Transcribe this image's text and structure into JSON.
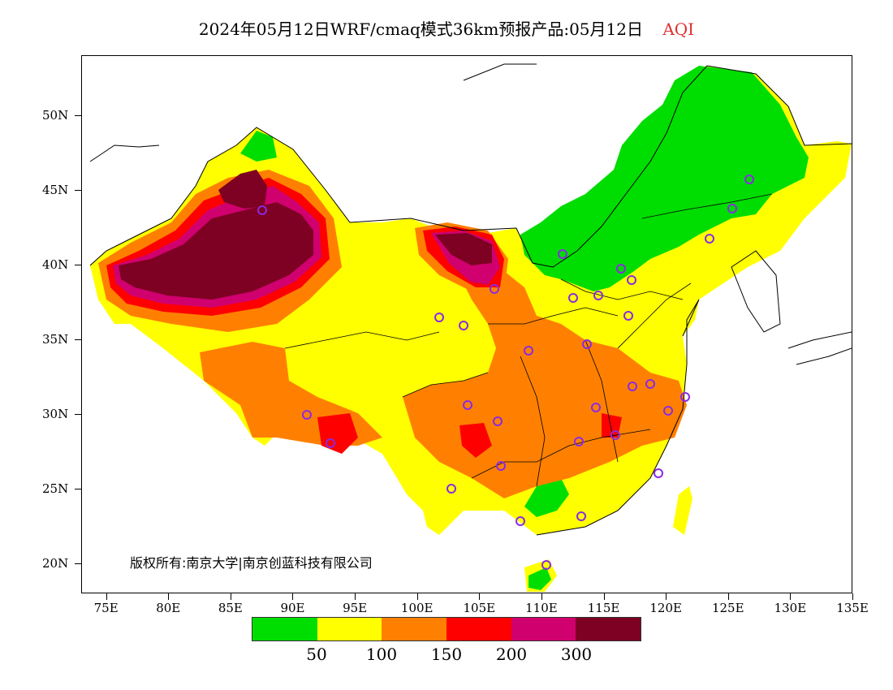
{
  "header": {
    "title": "2024年05月12日WRF/cmaq模式36km预报产品:05月12日",
    "parameter": "AQI"
  },
  "map": {
    "lat_labels": [
      "50N",
      "45N",
      "40N",
      "35N",
      "30N",
      "25N",
      "20N"
    ],
    "lat_values": [
      50,
      45,
      40,
      35,
      30,
      25,
      20
    ],
    "lon_labels": [
      "75E",
      "80E",
      "85E",
      "90E",
      "95E",
      "100E",
      "105E",
      "110E",
      "115E",
      "120E",
      "125E",
      "130E",
      "135E"
    ],
    "lon_values": [
      75,
      80,
      85,
      90,
      95,
      100,
      105,
      110,
      115,
      120,
      125,
      130,
      135
    ],
    "lon_range": [
      73,
      135
    ],
    "lat_range": [
      18,
      54
    ],
    "copyright": "版权所有:南京大学|南京创蓝科技有限公司"
  },
  "legend": {
    "colors": [
      "#00dd00",
      "#ffff00",
      "#ff8000",
      "#ff0000",
      "#d0006e",
      "#7e0023"
    ],
    "labels": [
      "50",
      "100",
      "150",
      "200",
      "300"
    ]
  },
  "colors": {
    "good": "#00dd00",
    "moderate": "#ffff00",
    "usg": "#ff8000",
    "unhealthy": "#ff0000",
    "very_unhealthy": "#d0006e",
    "hazardous": "#7e0023",
    "station_marker": "#8a2be2"
  }
}
